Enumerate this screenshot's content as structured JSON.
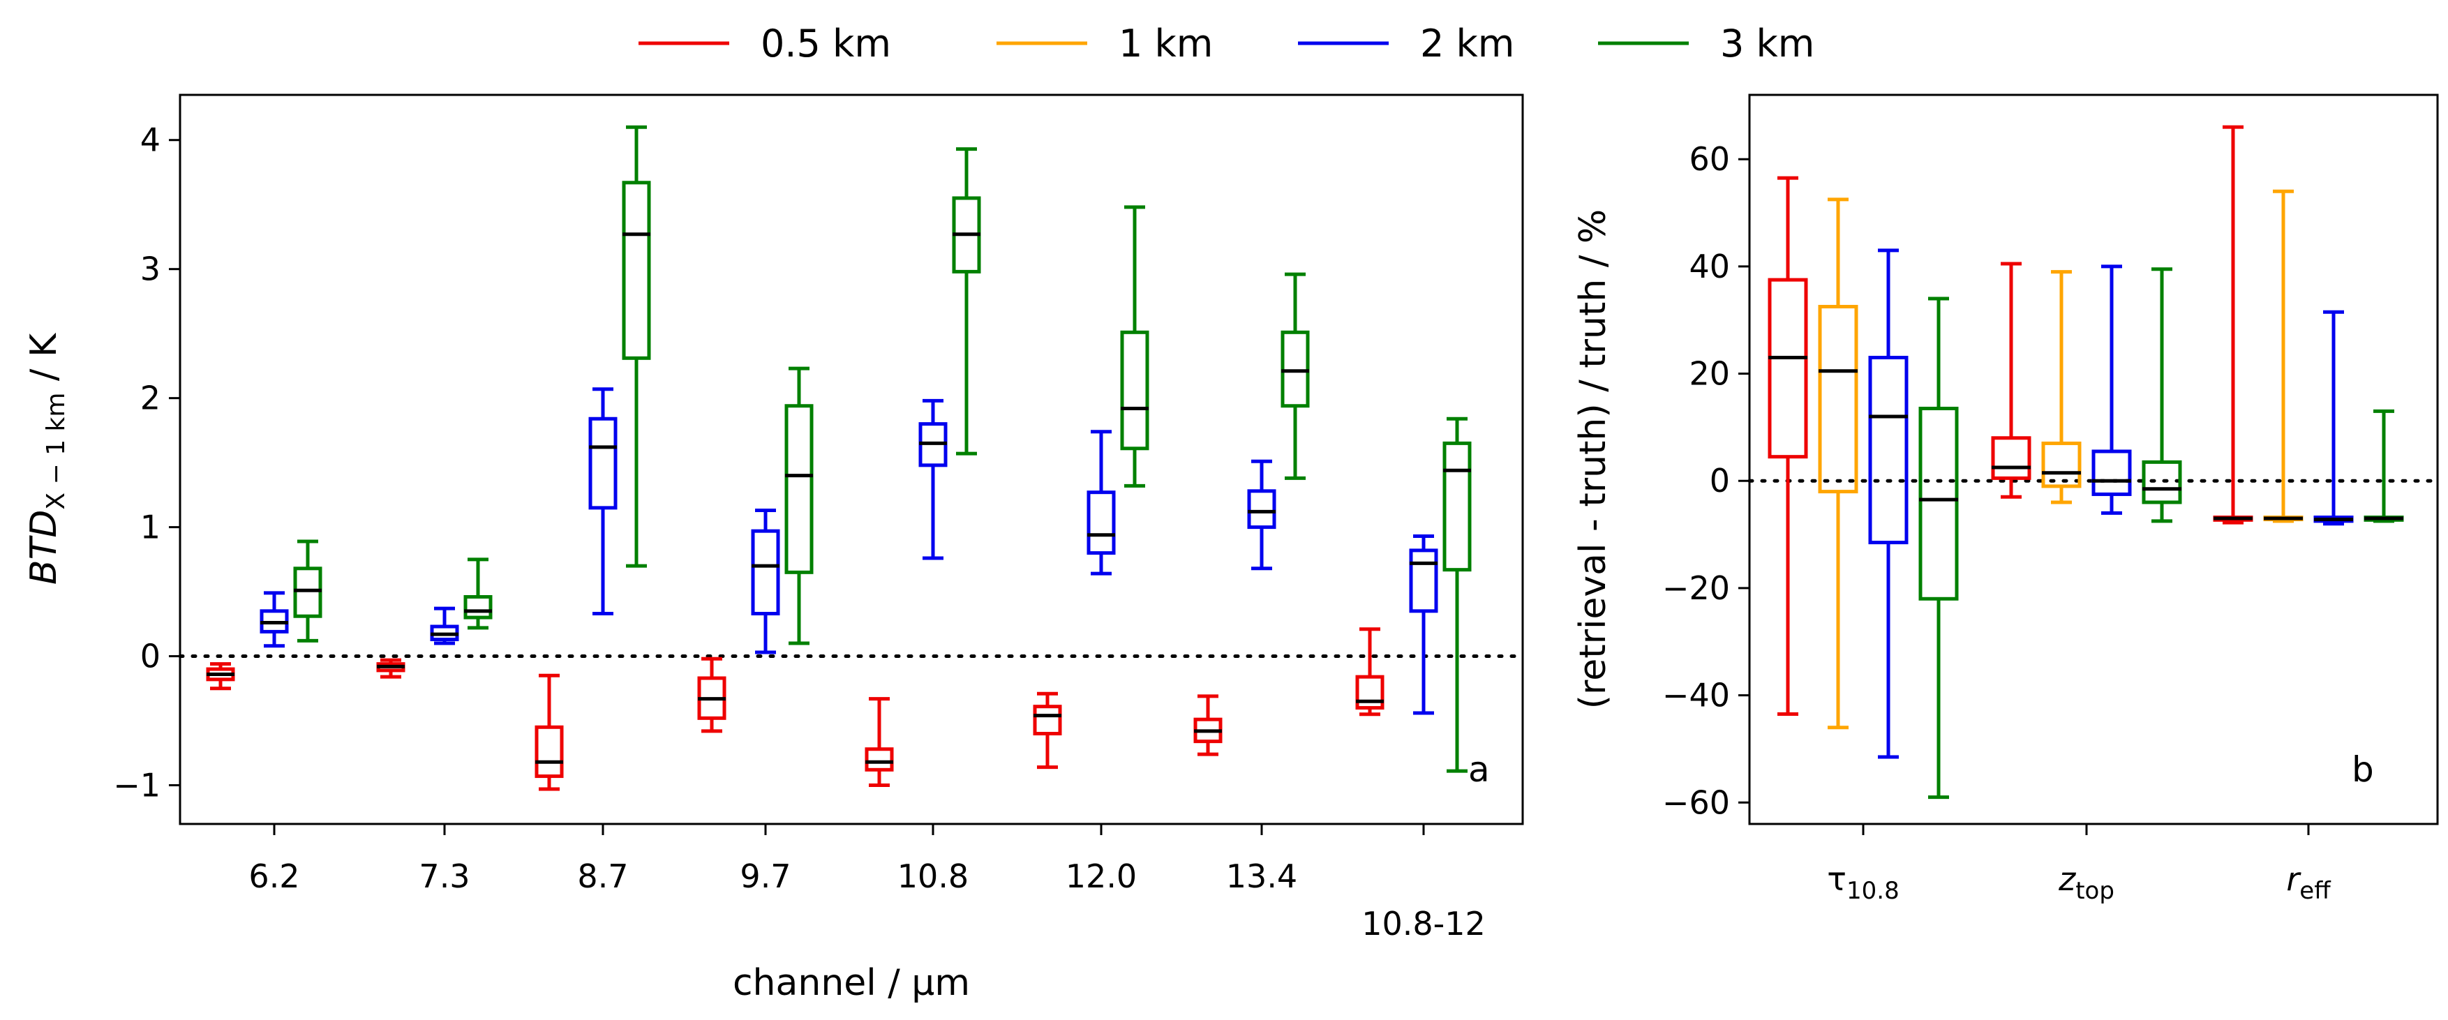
{
  "legend": {
    "entries": [
      {
        "label": "0.5 km",
        "color": "#ee0000"
      },
      {
        "label": "1 km",
        "color": "#ffa500"
      },
      {
        "label": "2 km",
        "color": "#0000ee"
      },
      {
        "label": "3 km",
        "color": "#008000"
      }
    ]
  },
  "chart_data": [
    {
      "type": "box",
      "panel_label": "a",
      "xlabel": "channel / μm",
      "ylabel_main": "BTD",
      "ylabel_sub": "X − 1 km",
      "ylabel_unit": " / K",
      "ylim": [
        -1.3,
        4.35
      ],
      "yticks": [
        -1,
        0,
        1,
        2,
        3,
        4
      ],
      "ytick_labels": [
        "−1",
        "0",
        "1",
        "2",
        "3",
        "4"
      ],
      "reference_line": 0,
      "categories": [
        "6.2",
        "7.3",
        "8.7",
        "9.7",
        "10.8",
        "12.0",
        "13.4",
        "10.8-12"
      ],
      "series": [
        {
          "name": "0.5 km",
          "color": "#ee0000",
          "boxes": [
            {
              "whislo": -0.25,
              "q1": -0.18,
              "med": -0.14,
              "q3": -0.1,
              "whishi": -0.06
            },
            {
              "whislo": -0.16,
              "q1": -0.11,
              "med": -0.08,
              "q3": -0.06,
              "whishi": -0.03
            },
            {
              "whislo": -1.03,
              "q1": -0.93,
              "med": -0.82,
              "q3": -0.55,
              "whishi": -0.15
            },
            {
              "whislo": -0.58,
              "q1": -0.48,
              "med": -0.33,
              "q3": -0.17,
              "whishi": -0.02
            },
            {
              "whislo": -1.0,
              "q1": -0.88,
              "med": -0.82,
              "q3": -0.72,
              "whishi": -0.33
            },
            {
              "whislo": -0.86,
              "q1": -0.6,
              "med": -0.46,
              "q3": -0.39,
              "whishi": -0.29
            },
            {
              "whislo": -0.76,
              "q1": -0.66,
              "med": -0.58,
              "q3": -0.49,
              "whishi": -0.31
            },
            {
              "whislo": -0.45,
              "q1": -0.4,
              "med": -0.35,
              "q3": -0.16,
              "whishi": 0.21
            }
          ]
        },
        {
          "name": "2 km",
          "color": "#0000ee",
          "boxes": [
            {
              "whislo": 0.08,
              "q1": 0.19,
              "med": 0.26,
              "q3": 0.35,
              "whishi": 0.49
            },
            {
              "whislo": 0.1,
              "q1": 0.13,
              "med": 0.17,
              "q3": 0.23,
              "whishi": 0.37
            },
            {
              "whislo": 0.33,
              "q1": 1.15,
              "med": 1.62,
              "q3": 1.84,
              "whishi": 2.07
            },
            {
              "whislo": 0.03,
              "q1": 0.33,
              "med": 0.7,
              "q3": 0.97,
              "whishi": 1.13
            },
            {
              "whislo": 0.76,
              "q1": 1.48,
              "med": 1.65,
              "q3": 1.8,
              "whishi": 1.98
            },
            {
              "whislo": 0.64,
              "q1": 0.8,
              "med": 0.94,
              "q3": 1.27,
              "whishi": 1.74
            },
            {
              "whislo": 0.68,
              "q1": 1.0,
              "med": 1.12,
              "q3": 1.28,
              "whishi": 1.51
            },
            {
              "whislo": -0.44,
              "q1": 0.35,
              "med": 0.72,
              "q3": 0.82,
              "whishi": 0.93
            }
          ]
        },
        {
          "name": "3 km",
          "color": "#008000",
          "boxes": [
            {
              "whislo": 0.12,
              "q1": 0.31,
              "med": 0.51,
              "q3": 0.68,
              "whishi": 0.89
            },
            {
              "whislo": 0.22,
              "q1": 0.3,
              "med": 0.35,
              "q3": 0.46,
              "whishi": 0.75
            },
            {
              "whislo": 0.7,
              "q1": 2.31,
              "med": 3.27,
              "q3": 3.67,
              "whishi": 4.1
            },
            {
              "whislo": 0.1,
              "q1": 0.65,
              "med": 1.4,
              "q3": 1.94,
              "whishi": 2.23
            },
            {
              "whislo": 1.57,
              "q1": 2.98,
              "med": 3.27,
              "q3": 3.55,
              "whishi": 3.93
            },
            {
              "whislo": 1.32,
              "q1": 1.61,
              "med": 1.92,
              "q3": 2.51,
              "whishi": 3.48
            },
            {
              "whislo": 1.38,
              "q1": 1.94,
              "med": 2.21,
              "q3": 2.51,
              "whishi": 2.96
            },
            {
              "whislo": -0.89,
              "q1": 0.67,
              "med": 1.44,
              "q3": 1.65,
              "whishi": 1.84
            }
          ]
        }
      ]
    },
    {
      "type": "box",
      "panel_label": "b",
      "xlabel": "",
      "ylabel": "(retrieval - truth) / truth / %",
      "ylim": [
        -64,
        72
      ],
      "yticks": [
        -60,
        -40,
        -20,
        0,
        20,
        40,
        60
      ],
      "ytick_labels": [
        "−60",
        "−40",
        "−20",
        "0",
        "20",
        "40",
        "60"
      ],
      "reference_line": 0,
      "categories": [
        {
          "main": "τ",
          "sub": "10.8",
          "italic_main": false
        },
        {
          "main": "z",
          "sub": "top",
          "italic_main": true
        },
        {
          "main": "r",
          "sub": "eff",
          "italic_main": true
        }
      ],
      "series": [
        {
          "name": "0.5 km",
          "color": "#ee0000",
          "boxes": [
            {
              "whislo": -43.5,
              "q1": 4.5,
              "med": 23.0,
              "q3": 37.5,
              "whishi": 56.5
            },
            {
              "whislo": -3.0,
              "q1": 0.5,
              "med": 2.5,
              "q3": 8.0,
              "whishi": 40.5
            },
            {
              "whislo": -7.8,
              "q1": -7.3,
              "med": -7.0,
              "q3": -6.8,
              "whishi": 66.0
            }
          ]
        },
        {
          "name": "1 km",
          "color": "#ffa500",
          "boxes": [
            {
              "whislo": -46.0,
              "q1": -2.0,
              "med": 20.5,
              "q3": 32.5,
              "whishi": 52.5
            },
            {
              "whislo": -4.0,
              "q1": -1.0,
              "med": 1.5,
              "q3": 7.0,
              "whishi": 39.0
            },
            {
              "whislo": -7.5,
              "q1": -7.2,
              "med": -7.0,
              "q3": -6.8,
              "whishi": 54.0
            }
          ]
        },
        {
          "name": "2 km",
          "color": "#0000ee",
          "boxes": [
            {
              "whislo": -51.5,
              "q1": -11.5,
              "med": 12.0,
              "q3": 23.0,
              "whishi": 43.0
            },
            {
              "whislo": -6.0,
              "q1": -2.5,
              "med": 0.0,
              "q3": 5.5,
              "whishi": 40.0
            },
            {
              "whislo": -8.0,
              "q1": -7.5,
              "med": -7.2,
              "q3": -6.8,
              "whishi": 31.5
            }
          ]
        },
        {
          "name": "3 km",
          "color": "#008000",
          "boxes": [
            {
              "whislo": -59.0,
              "q1": -22.0,
              "med": -3.5,
              "q3": 13.5,
              "whishi": 34.0
            },
            {
              "whislo": -7.5,
              "q1": -4.0,
              "med": -1.5,
              "q3": 3.5,
              "whishi": 39.5
            },
            {
              "whislo": -7.5,
              "q1": -7.3,
              "med": -7.0,
              "q3": -6.8,
              "whishi": 13.0
            }
          ]
        }
      ]
    }
  ]
}
